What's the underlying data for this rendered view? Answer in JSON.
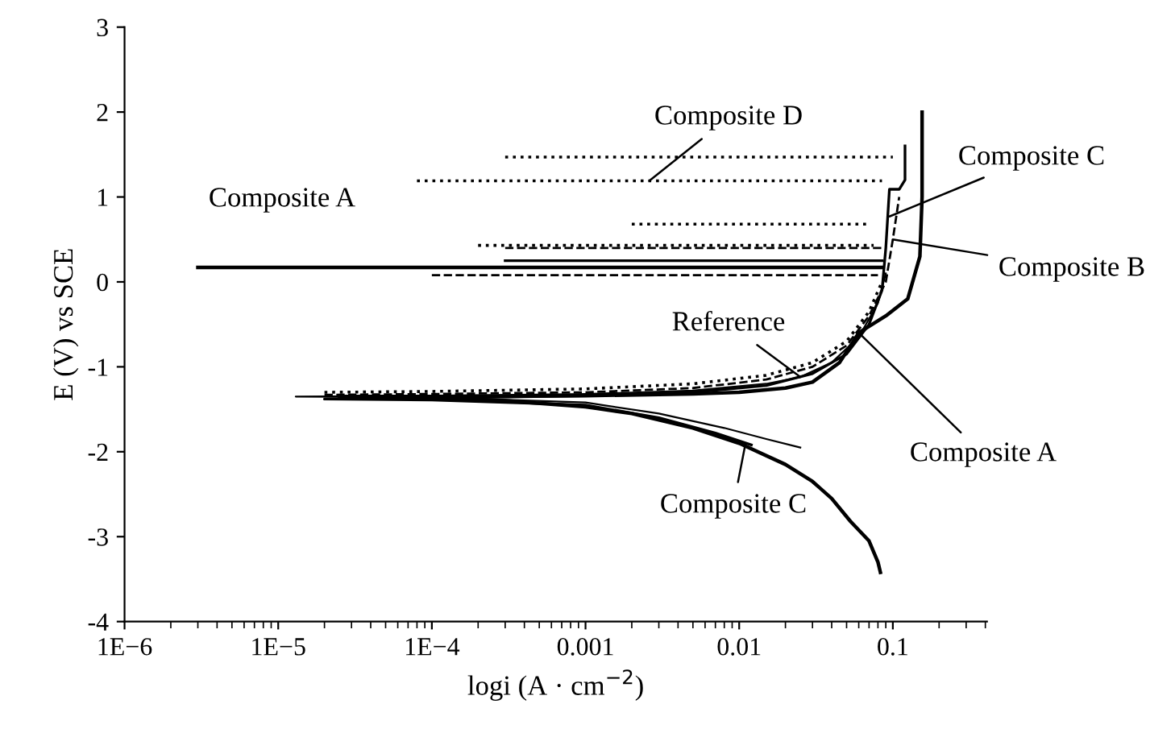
{
  "chart_data": {
    "type": "line",
    "xlabel": "logi (A · cm$^{−2}$)",
    "ylabel": "E (V) vs SCE",
    "log": "x",
    "xlim": [
      1e-06,
      0.41
    ],
    "ylim": [
      -4,
      3
    ],
    "xticks": [
      {
        "value": 1e-06,
        "label": "1E−6"
      },
      {
        "value": 1e-05,
        "label": "1E−5"
      },
      {
        "value": 0.0001,
        "label": "1E−4"
      },
      0.001,
      0.01,
      0.1
    ],
    "yticks": [
      -4,
      -3,
      -2,
      -1,
      0,
      1,
      2,
      3
    ],
    "grid": false,
    "marker": "none",
    "series": [
      {
        "color": "#000000",
        "line_style": "solid",
        "x": [
          0.083,
          0.08,
          0.07,
          0.053,
          0.04,
          0.03,
          0.02,
          0.01,
          0.005,
          0.002,
          0.001,
          0.0003,
          0.0001,
          3e-05,
          2.5e-05,
          3e-05,
          0.0001,
          0.001,
          0.005,
          0.01,
          0.02,
          0.03,
          0.045,
          0.06,
          0.09,
          0.125,
          0.15,
          0.155,
          0.155
        ],
        "values": [
          -3.42,
          -3.3,
          -3.05,
          -2.82,
          -2.55,
          -2.35,
          -2.15,
          -1.9,
          -1.72,
          -1.55,
          -1.47,
          -1.4,
          -1.37,
          -1.36,
          -1.35,
          -1.35,
          -1.35,
          -1.34,
          -1.32,
          -1.3,
          -1.25,
          -1.18,
          -0.95,
          -0.6,
          -0.4,
          -0.2,
          0.3,
          1.0,
          2.0
        ]
      },
      {
        "color": "#000000",
        "line_style": "solid",
        "x": [
          3e-06,
          0.085
        ],
        "values": [
          0.17,
          0.17
        ]
      },
      {
        "color": "#000000",
        "line_style": "solid",
        "x": [
          0.025,
          0.015,
          0.008,
          0.003,
          0.001,
          0.0001,
          1.3e-05,
          0.0001,
          0.001,
          0.005,
          0.015,
          0.025,
          0.04,
          0.06,
          0.08,
          0.09
        ],
        "values": [
          -1.95,
          -1.85,
          -1.72,
          -1.55,
          -1.42,
          -1.36,
          -1.35,
          -1.34,
          -1.32,
          -1.28,
          -1.2,
          -1.12,
          -0.95,
          -0.65,
          -0.25,
          0.1
        ]
      },
      {
        "color": "#000000",
        "line_style": "solid",
        "x": [
          0.012,
          0.007,
          0.003,
          0.001,
          0.0001,
          2e-05,
          0.0001,
          0.001,
          0.005,
          0.015,
          0.03,
          0.05,
          0.07,
          0.085,
          0.09,
          0.095,
          0.11,
          0.12,
          0.12
        ],
        "values": [
          -1.92,
          -1.78,
          -1.6,
          -1.45,
          -1.39,
          -1.38,
          -1.37,
          -1.34,
          -1.3,
          -1.22,
          -1.08,
          -0.85,
          -0.5,
          -0.1,
          0.4,
          1.09,
          1.09,
          1.2,
          1.6
        ]
      },
      {
        "color": "#000000",
        "line_style": "solid",
        "x": [
          0.0003,
          0.085
        ],
        "values": [
          0.25,
          0.25
        ]
      },
      {
        "color": "#000000",
        "line_style": "dashed",
        "x": [
          2e-05,
          0.0001,
          0.001,
          0.005,
          0.015,
          0.03,
          0.05,
          0.07,
          0.09,
          0.1,
          0.11
        ],
        "values": [
          -1.33,
          -1.32,
          -1.3,
          -1.25,
          -1.15,
          -1.0,
          -0.75,
          -0.4,
          0.0,
          0.5,
          1.0
        ]
      },
      {
        "color": "#000000",
        "line_style": "dashed",
        "x": [
          0.0001,
          0.08
        ],
        "values": [
          0.08,
          0.08
        ]
      },
      {
        "color": "#000000",
        "line_style": "dashed",
        "x": [
          0.0003,
          0.085
        ],
        "values": [
          0.4,
          0.4
        ]
      },
      {
        "color": "#000000",
        "line_style": "dotted",
        "x": [
          2e-05,
          0.0001,
          0.001,
          0.005,
          0.015,
          0.03,
          0.05,
          0.07,
          0.085
        ],
        "values": [
          -1.3,
          -1.29,
          -1.26,
          -1.2,
          -1.1,
          -0.95,
          -0.7,
          -0.35,
          0.0
        ]
      },
      {
        "color": "#000000",
        "line_style": "dotted",
        "x": [
          0.0003,
          0.1
        ],
        "values": [
          1.47,
          1.47
        ]
      },
      {
        "color": "#000000",
        "line_style": "dotted",
        "x": [
          8e-05,
          0.085
        ],
        "values": [
          1.19,
          1.19
        ]
      },
      {
        "color": "#000000",
        "line_style": "dotted",
        "x": [
          0.002,
          0.07
        ],
        "values": [
          0.68,
          0.68
        ]
      },
      {
        "color": "#000000",
        "line_style": "dotted",
        "x": [
          0.0002,
          0.075
        ],
        "values": [
          0.43,
          0.43
        ]
      }
    ],
    "annotations": [
      {
        "text": "Composite D",
        "x": 0.0026,
        "y": 1.19
      },
      {
        "text": "Composite C",
        "x": 0.095,
        "y": 0.77
      },
      {
        "text": "Composite B",
        "x": 0.1,
        "y": 0.5
      },
      {
        "text": "Composite A",
        "x": 2e-05,
        "y": 0.17
      },
      {
        "text": "Reference",
        "x": 0.025,
        "y": -1.12
      },
      {
        "text": "Composite A",
        "x": 0.06,
        "y": -0.6
      },
      {
        "text": "Composite C",
        "x": 0.011,
        "y": -1.9
      }
    ]
  }
}
